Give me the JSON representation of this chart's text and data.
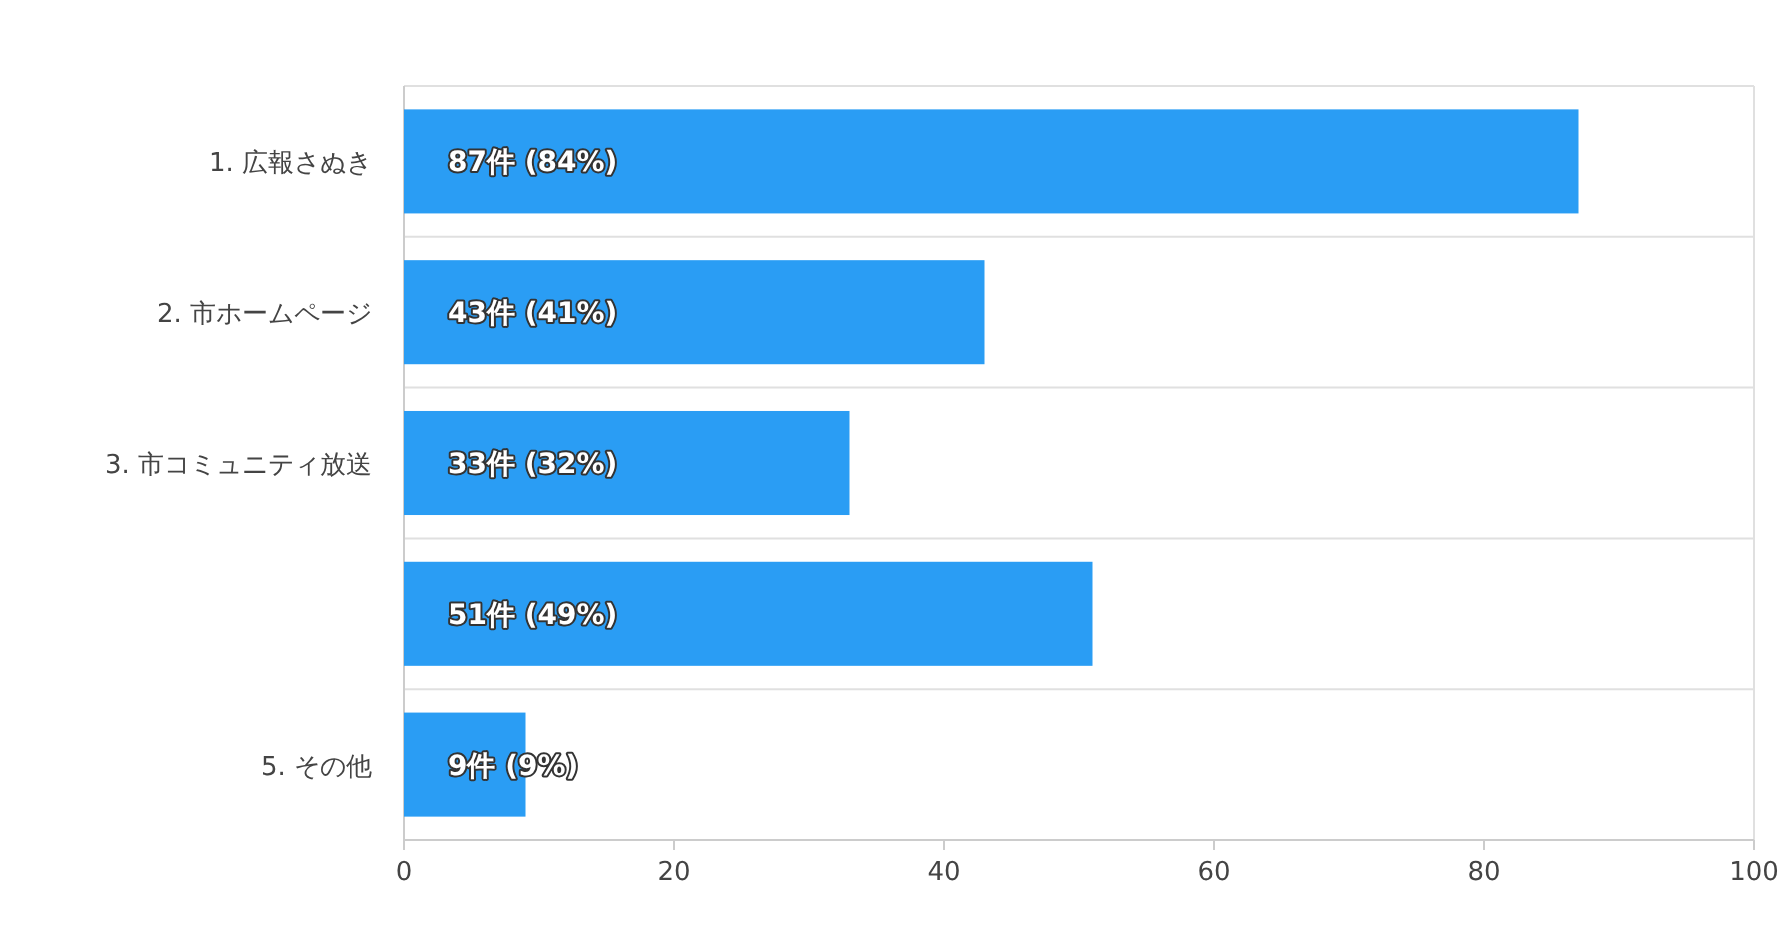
{
  "chart_data": {
    "type": "bar",
    "orientation": "horizontal",
    "categories": [
      "1. 広報さぬき",
      "2. 市ホームページ",
      "3. 市コミュニティ放送",
      null,
      "5. その他"
    ],
    "values": [
      87,
      43,
      33,
      51,
      9
    ],
    "value_labels": [
      "87件 (84%)",
      "43件 (41%)",
      "33件 (32%)",
      "51件 (49%)",
      "9件 (9%)"
    ],
    "color": "#2a9df4",
    "xlim": [
      0,
      100
    ],
    "xticks": [
      0,
      20,
      40,
      60,
      80,
      100
    ],
    "grid": "y"
  }
}
